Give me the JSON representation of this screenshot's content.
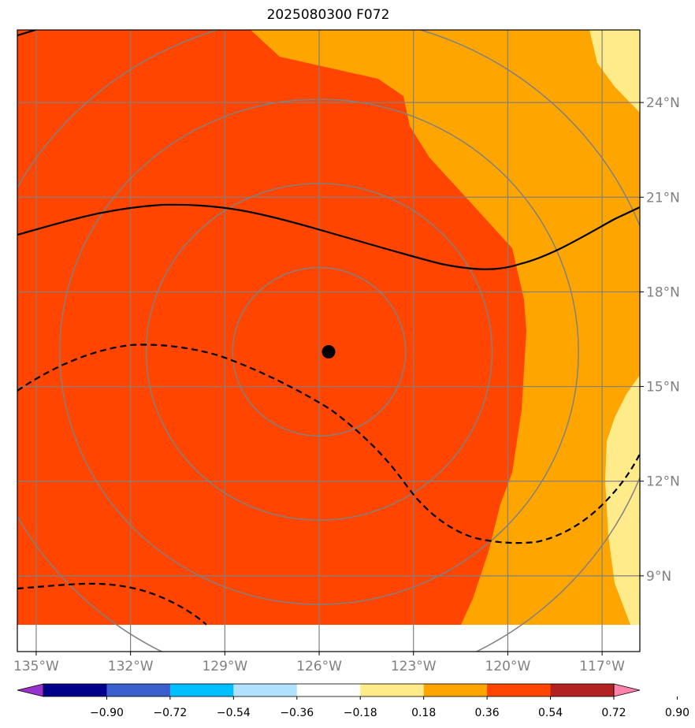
{
  "title": "2025080300 F072",
  "map": {
    "lon_range": [
      -135.6,
      -115.8
    ],
    "lat_range": [
      6.6,
      26.3
    ],
    "center_marker": {
      "lon": -125.7,
      "lat": 16.1
    },
    "colors": {
      "land_fill": "#ff4500",
      "orange_band": "#ffa500",
      "yellow_band": "#ffeb8a",
      "no_data": "#ffffff",
      "gridlines": "#808080",
      "contours": "#000000"
    },
    "x_ticks": [
      {
        "lon": -135,
        "label": "135°W"
      },
      {
        "lon": -132,
        "label": "132°W"
      },
      {
        "lon": -129,
        "label": "129°W"
      },
      {
        "lon": -126,
        "label": "126°W"
      },
      {
        "lon": -123,
        "label": "123°W"
      },
      {
        "lon": -120,
        "label": "120°W"
      },
      {
        "lon": -117,
        "label": "117°W"
      }
    ],
    "y_ticks": [
      {
        "lat": 24,
        "label": "24°N"
      },
      {
        "lat": 21,
        "label": "21°N"
      },
      {
        "lat": 18,
        "label": "18°N"
      },
      {
        "lat": 15,
        "label": "15°N"
      },
      {
        "lat": 12,
        "label": "12°N"
      },
      {
        "lat": 9,
        "label": "9°N"
      }
    ],
    "range_rings_deg": [
      2.75,
      5.5,
      8.25,
      11.0
    ]
  },
  "colorbar": {
    "colors": [
      "#9932cc",
      "#00008b",
      "#3a5fcd",
      "#00bfff",
      "#b0e2ff",
      "#ffffff",
      "#ffeb8a",
      "#ffa500",
      "#ff4500",
      "#b22222",
      "#ff82ab"
    ],
    "tick_labels": [
      "−0.90",
      "−0.72",
      "−0.54",
      "−0.36",
      "−0.18",
      "0.18",
      "0.36",
      "0.54",
      "0.72",
      "0.90"
    ]
  }
}
